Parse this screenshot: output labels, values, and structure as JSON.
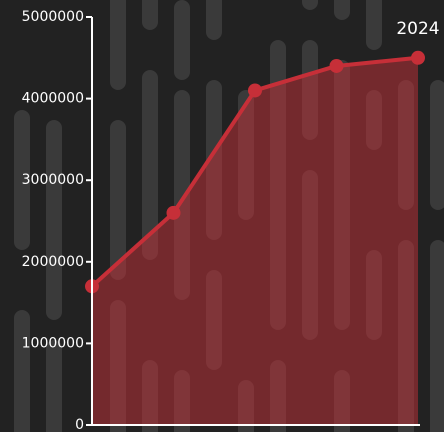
{
  "chart_data": {
    "type": "line",
    "categories": [
      null,
      null,
      null,
      null,
      "2024"
    ],
    "series": [
      {
        "color": "#c62f38",
        "values": [
          1700000,
          2600000,
          4100000,
          4400000,
          4500000
        ]
      }
    ],
    "ylim": [
      0,
      5000000
    ],
    "yticks": [
      0,
      1000000,
      2000000,
      3000000,
      4000000,
      5000000
    ]
  }
}
